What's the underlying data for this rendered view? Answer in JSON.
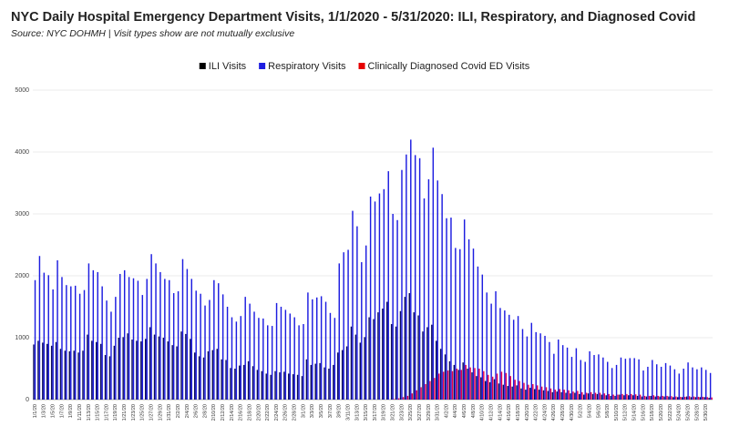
{
  "chart_data": {
    "type": "bar",
    "title": "NYC Daily Hospital Emergency Department Visits, 1/1/2020 - 5/31/2020: ILI, Respiratory, and Diagnosed Covid",
    "subtitle": "Source: NYC DOHMH | Visit types show are not mutually exclusive",
    "categories": [
      "1/1/20",
      null,
      "1/3/20",
      null,
      "1/5/20",
      null,
      "1/7/20",
      null,
      "1/9/20",
      null,
      "1/11/20",
      null,
      "1/13/20",
      null,
      "1/15/20",
      null,
      "1/17/20",
      null,
      "1/19/20",
      null,
      "1/21/20",
      null,
      "1/23/20",
      null,
      "1/25/20",
      null,
      "1/27/20",
      null,
      "1/29/20",
      null,
      "1/31/20",
      null,
      "2/2/20",
      null,
      "2/4/20",
      null,
      "2/6/20",
      null,
      "2/8/20",
      null,
      "2/10/20",
      null,
      "2/12/20",
      null,
      "2/14/20",
      null,
      "2/16/20",
      null,
      "2/18/20",
      null,
      "2/20/20",
      null,
      "2/22/20",
      null,
      "2/24/20",
      null,
      "2/26/20",
      null,
      "2/28/20",
      null,
      "3/1/20",
      null,
      "3/3/20",
      null,
      "3/5/20",
      null,
      "3/7/20",
      null,
      "3/9/20",
      null,
      "3/11/20",
      null,
      "3/13/20",
      null,
      "3/15/20",
      null,
      "3/17/20",
      null,
      "3/19/20",
      null,
      "3/21/20",
      null,
      "3/23/20",
      null,
      "3/25/20",
      null,
      "3/27/20",
      null,
      "3/29/20",
      null,
      "3/31/20",
      null,
      "4/2/20",
      null,
      "4/4/20",
      null,
      "4/6/20",
      null,
      "4/8/20",
      null,
      "4/10/20",
      null,
      "4/12/20",
      null,
      "4/14/20",
      null,
      "4/16/20",
      null,
      "4/18/20",
      null,
      "4/20/20",
      null,
      "4/22/20",
      null,
      "4/24/20",
      null,
      "4/26/20",
      null,
      "4/28/20",
      null,
      "4/30/20",
      null,
      "5/2/20",
      null,
      "5/4/20",
      null,
      "5/6/20",
      null,
      "5/8/20",
      null,
      "5/10/20",
      null,
      "5/12/20",
      null,
      "5/14/20",
      null,
      "5/16/20",
      null,
      "5/18/20",
      null,
      "5/20/20",
      null,
      "5/22/20",
      null,
      "5/24/20",
      null,
      "5/26/20",
      null,
      "5/28/20",
      null,
      "5/30/20",
      null
    ],
    "series": [
      {
        "name": "ILI Visits",
        "color": "#0b0b5e",
        "legend_color": "#000000",
        "values": [
          890,
          950,
          920,
          900,
          870,
          930,
          820,
          790,
          780,
          790,
          760,
          790,
          1050,
          950,
          930,
          900,
          720,
          700,
          870,
          1000,
          1010,
          1070,
          970,
          950,
          940,
          980,
          1170,
          1050,
          1020,
          1000,
          940,
          880,
          860,
          1100,
          1060,
          980,
          760,
          700,
          680,
          780,
          800,
          820,
          650,
          640,
          510,
          500,
          550,
          560,
          620,
          540,
          480,
          460,
          420,
          400,
          460,
          440,
          450,
          420,
          410,
          400,
          380,
          650,
          560,
          580,
          590,
          520,
          500,
          560,
          760,
          800,
          860,
          1180,
          1050,
          920,
          1010,
          1330,
          1300,
          1410,
          1470,
          1580,
          1220,
          1180,
          1430,
          1660,
          1720,
          1410,
          1360,
          1100,
          1170,
          1210,
          950,
          820,
          730,
          620,
          560,
          480,
          600,
          500,
          440,
          380,
          360,
          300,
          280,
          330,
          260,
          240,
          220,
          210,
          230,
          180,
          160,
          190,
          170,
          160,
          150,
          140,
          120,
          130,
          120,
          110,
          100,
          110,
          90,
          80,
          100,
          90,
          90,
          80,
          70,
          60,
          60,
          80,
          70,
          70,
          70,
          60,
          50,
          50,
          60,
          50,
          50,
          50,
          50,
          40,
          40,
          40,
          50,
          40,
          40,
          40,
          40,
          30
        ]
      },
      {
        "name": "Respiratory Visits",
        "color": "#1c1ce0",
        "legend_color": "#1c1ce0",
        "values": [
          1930,
          2320,
          2050,
          2010,
          1780,
          2250,
          1980,
          1850,
          1830,
          1840,
          1710,
          1770,
          2200,
          2090,
          2060,
          1830,
          1600,
          1420,
          1660,
          2030,
          2090,
          1980,
          1960,
          1920,
          1690,
          1950,
          2350,
          2200,
          2060,
          1950,
          1930,
          1720,
          1750,
          2270,
          2110,
          1950,
          1760,
          1710,
          1520,
          1610,
          1930,
          1880,
          1700,
          1500,
          1330,
          1260,
          1350,
          1660,
          1550,
          1420,
          1320,
          1310,
          1200,
          1190,
          1560,
          1500,
          1450,
          1390,
          1330,
          1200,
          1220,
          1730,
          1620,
          1650,
          1670,
          1580,
          1400,
          1320,
          2200,
          2380,
          2420,
          3050,
          2800,
          2220,
          2490,
          3280,
          3200,
          3330,
          3400,
          3690,
          3000,
          2900,
          3710,
          3960,
          4200,
          3950,
          3900,
          3250,
          3560,
          4070,
          3540,
          3320,
          2930,
          2940,
          2450,
          2430,
          2910,
          2590,
          2440,
          2150,
          2020,
          1730,
          1550,
          1750,
          1480,
          1440,
          1370,
          1290,
          1350,
          1140,
          1020,
          1240,
          1090,
          1070,
          1030,
          930,
          740,
          970,
          880,
          840,
          690,
          830,
          640,
          610,
          780,
          720,
          730,
          680,
          610,
          510,
          560,
          680,
          660,
          670,
          670,
          650,
          470,
          530,
          640,
          570,
          530,
          590,
          550,
          490,
          420,
          500,
          600,
          520,
          490,
          520,
          480,
          430
        ]
      },
      {
        "name": "Clinically Diagnosed Covid ED Visits",
        "color": "#e6004c",
        "legend_color": "#e60000",
        "values": [
          0,
          0,
          0,
          0,
          0,
          0,
          0,
          0,
          0,
          0,
          0,
          0,
          0,
          0,
          0,
          0,
          0,
          0,
          0,
          0,
          0,
          0,
          0,
          0,
          0,
          0,
          0,
          0,
          0,
          0,
          0,
          0,
          0,
          0,
          0,
          0,
          0,
          0,
          0,
          0,
          0,
          0,
          0,
          0,
          0,
          0,
          0,
          0,
          0,
          0,
          0,
          0,
          0,
          0,
          0,
          0,
          0,
          0,
          0,
          0,
          0,
          0,
          0,
          0,
          0,
          0,
          0,
          0,
          0,
          0,
          0,
          0,
          0,
          0,
          0,
          0,
          0,
          0,
          0,
          0,
          10,
          20,
          40,
          60,
          100,
          150,
          200,
          250,
          300,
          350,
          420,
          450,
          470,
          460,
          500,
          480,
          560,
          520,
          510,
          500,
          460,
          400,
          370,
          420,
          450,
          430,
          380,
          320,
          300,
          270,
          240,
          250,
          230,
          210,
          200,
          180,
          160,
          170,
          160,
          150,
          130,
          140,
          120,
          110,
          120,
          110,
          110,
          100,
          90,
          80,
          80,
          90,
          90,
          90,
          85,
          80,
          60,
          60,
          70,
          60,
          60,
          60,
          55,
          50,
          45,
          45,
          55,
          50,
          45,
          45,
          40,
          35
        ]
      }
    ],
    "ylim": [
      0,
      5000
    ],
    "yticks": [
      0,
      1000,
      2000,
      3000,
      4000,
      5000
    ],
    "grid": true,
    "legend": "top"
  }
}
